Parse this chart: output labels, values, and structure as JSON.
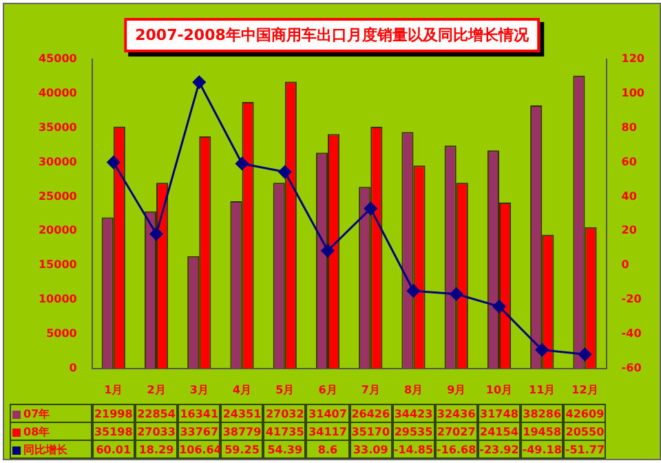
{
  "chart_data": {
    "type": "bar",
    "title": "2007-2008年中国商用车出口月度销量以及同比增长情况",
    "categories": [
      "1月",
      "2月",
      "3月",
      "4月",
      "5月",
      "6月",
      "7月",
      "8月",
      "9月",
      "10月",
      "11月",
      "12月"
    ],
    "series": [
      {
        "name": "07年",
        "color": "#993366",
        "values": [
          21998,
          22854,
          16341,
          24351,
          27032,
          31407,
          26426,
          34423,
          32436,
          31748,
          38286,
          42609
        ]
      },
      {
        "name": "08年",
        "color": "#ff0000",
        "values": [
          35198,
          27033,
          33767,
          38779,
          41735,
          34117,
          35170,
          29535,
          27027,
          24154,
          19458,
          20550
        ]
      },
      {
        "name": "同比增长",
        "type": "line",
        "axis": "y2",
        "color": "#000080",
        "marker": "diamond",
        "values": [
          60.01,
          18.29,
          106.64,
          59.25,
          54.39,
          8.6,
          33.09,
          -14.85,
          -16.68,
          -23.92,
          -49.18,
          -51.77
        ]
      }
    ],
    "ylim": [
      0,
      45000
    ],
    "yticks": [
      0,
      5000,
      10000,
      15000,
      20000,
      25000,
      30000,
      35000,
      40000,
      45000
    ],
    "y2lim": [
      -60,
      120
    ],
    "y2ticks": [
      -60,
      -40,
      -20,
      0,
      20,
      40,
      60,
      80,
      100,
      120
    ],
    "grid": false,
    "legend": "bottom left",
    "data_labels": true
  }
}
